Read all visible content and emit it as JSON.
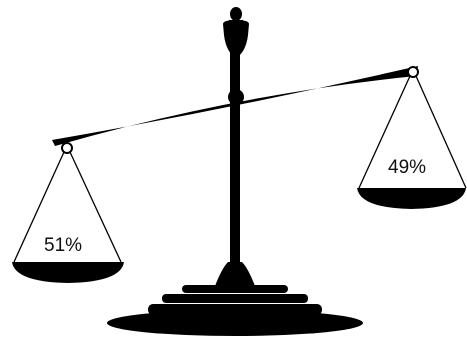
{
  "scale": {
    "left_pan": {
      "percent_label": "51%",
      "share": 0.51
    },
    "right_pan": {
      "percent_label": "49%",
      "share": 0.49
    },
    "heavier_side": "left"
  },
  "colors": {
    "ink": "#000000",
    "background": "#ffffff",
    "pan_fill": "#ffffff"
  }
}
